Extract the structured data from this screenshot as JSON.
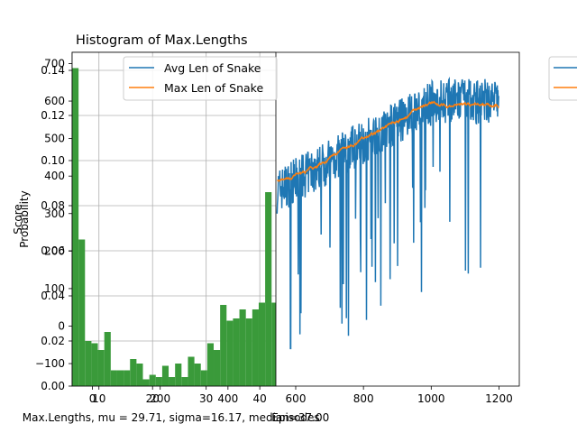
{
  "chart_data": [
    {
      "type": "bar",
      "title": "Histogram of Max.Lengths",
      "xlabel": "Max.Lengths, mu = 29.71, sigma=16.17,  median=37.00",
      "ylabel": "Probability",
      "xlim": [
        5,
        43
      ],
      "ylim": [
        0,
        0.148
      ],
      "x_ticks": [
        10,
        20,
        30,
        40
      ],
      "y_ticks": [
        "0.00",
        "0.02",
        "0.04",
        "0.06",
        "0.08",
        "0.10",
        "0.12",
        "0.14"
      ],
      "grid": true,
      "bar_color": "#3a9a3a",
      "bins": [
        [
          5.0,
          6.2,
          0.141
        ],
        [
          6.2,
          7.4,
          0.065
        ],
        [
          7.4,
          8.6,
          0.02
        ],
        [
          8.6,
          9.8,
          0.019
        ],
        [
          9.8,
          11.0,
          0.016
        ],
        [
          11.0,
          12.2,
          0.024
        ],
        [
          12.2,
          13.4,
          0.007
        ],
        [
          13.4,
          14.6,
          0.007
        ],
        [
          14.6,
          15.8,
          0.007
        ],
        [
          15.8,
          17.0,
          0.012
        ],
        [
          17.0,
          18.2,
          0.01
        ],
        [
          18.2,
          19.4,
          0.003
        ],
        [
          19.4,
          20.6,
          0.005
        ],
        [
          20.6,
          21.8,
          0.004
        ],
        [
          21.8,
          23.0,
          0.009
        ],
        [
          23.0,
          24.2,
          0.004
        ],
        [
          24.2,
          25.4,
          0.01
        ],
        [
          25.4,
          26.6,
          0.004
        ],
        [
          26.6,
          27.8,
          0.013
        ],
        [
          27.8,
          29.0,
          0.01
        ],
        [
          29.0,
          30.2,
          0.007
        ],
        [
          30.2,
          31.4,
          0.019
        ],
        [
          31.4,
          32.6,
          0.016
        ],
        [
          32.6,
          33.8,
          0.036
        ],
        [
          33.8,
          35.0,
          0.029
        ],
        [
          35.0,
          36.2,
          0.03
        ],
        [
          36.2,
          37.4,
          0.034
        ],
        [
          37.4,
          38.6,
          0.03
        ],
        [
          38.6,
          39.8,
          0.034
        ],
        [
          39.8,
          41.0,
          0.037
        ],
        [
          41.0,
          42.2,
          0.086
        ],
        [
          42.2,
          43.0,
          0.037
        ]
      ]
    },
    {
      "type": "line",
      "title": "",
      "xlabel": "Episodes",
      "ylabel": "Score",
      "xlim": [
        -60,
        1260
      ],
      "ylim": [
        -160,
        730
      ],
      "x_ticks": [
        0,
        200,
        400,
        600,
        800,
        1000,
        1200
      ],
      "y_ticks": [
        -100,
        0,
        100,
        200,
        300,
        400,
        500,
        600,
        700
      ],
      "legend": "upper-left",
      "series": [
        {
          "name": "Avg Len of Snake",
          "color": "#1f77b4"
        },
        {
          "name": "Max Len of Snake",
          "color": "#ff7f0e"
        }
      ]
    }
  ]
}
